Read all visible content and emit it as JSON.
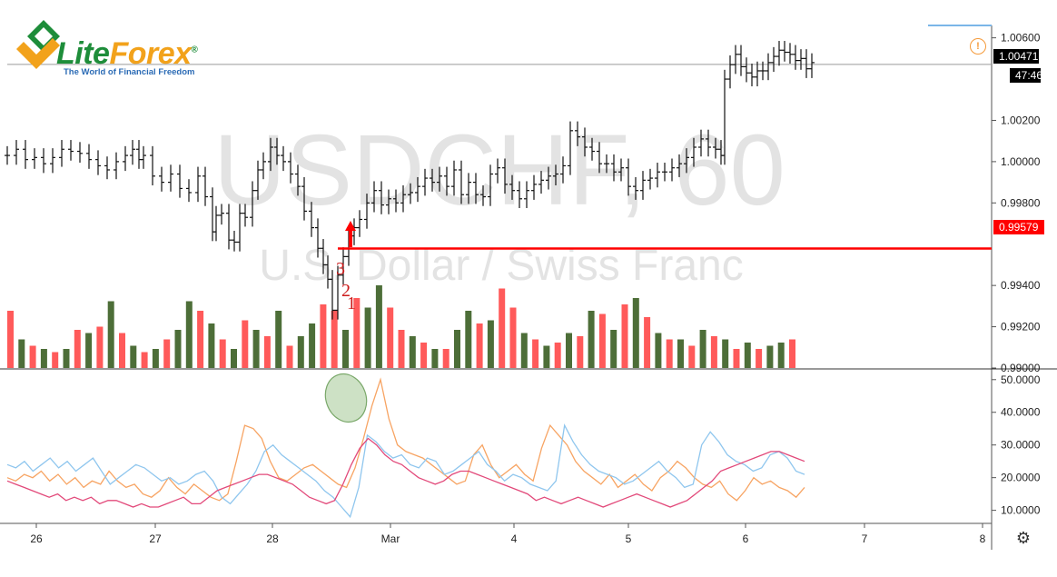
{
  "brand": {
    "name_part1": "Lite",
    "name_part2": "Forex",
    "reg_mark": "®",
    "tagline": "The World of Financial Freedom"
  },
  "watermark": {
    "symbol": "USDCHF, 60",
    "description": "U.S. Dollar / Swiss Franc"
  },
  "price_scale": {
    "ticks": [
      "1.00600",
      "1.00200",
      "1.00000",
      "0.99800",
      "0.99400",
      "0.99200",
      "0.99000"
    ],
    "current_price": "1.00471",
    "countdown": "47:46",
    "marked_price": "0.99579",
    "marked_price_color": "#ff0000"
  },
  "indicator_scale": {
    "ticks": [
      "50.0000",
      "40.0000",
      "30.0000",
      "20.0000",
      "10.0000"
    ]
  },
  "time_axis": {
    "labels": [
      "26",
      "27",
      "28",
      "Mar",
      "4",
      "5",
      "6",
      "7",
      "8"
    ]
  },
  "annotations": {
    "counts": [
      "3",
      "2",
      "1"
    ],
    "arrow_color": "#ff0000"
  },
  "icons": {
    "settings": "gear-icon",
    "alert": "alert-icon"
  },
  "chart_data": [
    {
      "type": "ohlc",
      "title": "USDCHF, 60",
      "subtitle": "U.S. Dollar / Swiss Franc",
      "ylim": [
        0.99,
        1.0066
      ],
      "x_range": [
        "26",
        "8"
      ],
      "close_path": [
        [
          0,
          1.0003
        ],
        [
          10,
          1.0006
        ],
        [
          20,
          1.0001
        ],
        [
          30,
          1.0002
        ],
        [
          40,
          0.9999
        ],
        [
          50,
          1.0002
        ],
        [
          60,
          1.0006
        ],
        [
          70,
          1.0005
        ],
        [
          80,
          1.0004
        ],
        [
          90,
          1.0001
        ],
        [
          100,
          0.9998
        ],
        [
          110,
          0.9996
        ],
        [
          120,
          1.0
        ],
        [
          130,
          1.0003
        ],
        [
          138,
          1.0006
        ],
        [
          145,
          1.0001
        ],
        [
          150,
          1.0003
        ],
        [
          160,
          0.9993
        ],
        [
          170,
          0.999
        ],
        [
          180,
          0.9994
        ],
        [
          190,
          0.9987
        ],
        [
          200,
          0.9985
        ],
        [
          210,
          0.9993
        ],
        [
          218,
          0.9983
        ],
        [
          226,
          0.9966
        ],
        [
          230,
          0.9974
        ],
        [
          236,
          0.9975
        ],
        [
          244,
          0.9962
        ],
        [
          250,
          0.9961
        ],
        [
          256,
          0.9975
        ],
        [
          262,
          0.9973
        ],
        [
          270,
          0.9986
        ],
        [
          276,
          0.9996
        ],
        [
          282,
          1.0
        ],
        [
          290,
          1.0007
        ],
        [
          297,
          1.0003
        ],
        [
          304,
          1.0
        ],
        [
          312,
          0.9994
        ],
        [
          320,
          0.9988
        ],
        [
          327,
          0.9976
        ],
        [
          335,
          0.9968
        ],
        [
          342,
          0.9958
        ],
        [
          348,
          0.995
        ],
        [
          353,
          0.9943
        ],
        [
          358,
          0.9928
        ],
        [
          364,
          0.9945
        ],
        [
          370,
          0.9954
        ],
        [
          376,
          0.9964
        ],
        [
          382,
          0.9968
        ],
        [
          388,
          0.9972
        ],
        [
          396,
          0.998
        ],
        [
          404,
          0.9986
        ],
        [
          412,
          0.9979
        ],
        [
          420,
          0.9982
        ],
        [
          428,
          0.998
        ],
        [
          436,
          0.9984
        ],
        [
          444,
          0.9985
        ],
        [
          452,
          0.9988
        ],
        [
          460,
          0.9992
        ],
        [
          468,
          0.999
        ],
        [
          476,
          0.9993
        ],
        [
          484,
          0.9988
        ],
        [
          492,
          0.9996
        ],
        [
          500,
          0.9984
        ],
        [
          508,
          0.999
        ],
        [
          516,
          0.9984
        ],
        [
          524,
          0.9983
        ],
        [
          532,
          0.9994
        ],
        [
          540,
          0.9997
        ],
        [
          548,
          0.9989
        ],
        [
          556,
          0.9986
        ],
        [
          564,
          0.9982
        ],
        [
          572,
          0.9986
        ],
        [
          580,
          0.9989
        ],
        [
          588,
          0.9991
        ],
        [
          596,
          0.9993
        ],
        [
          604,
          0.9994
        ],
        [
          612,
          0.9998
        ],
        [
          620,
          1.0015
        ],
        [
          628,
          1.0012
        ],
        [
          636,
          1.0007
        ],
        [
          644,
          1.0005
        ],
        [
          652,
          0.9999
        ],
        [
          660,
          0.9999
        ],
        [
          668,
          0.9995
        ],
        [
          676,
          0.9997
        ],
        [
          684,
          0.9988
        ],
        [
          692,
          0.9986
        ],
        [
          700,
          0.9991
        ],
        [
          708,
          0.9992
        ],
        [
          716,
          0.9995
        ],
        [
          724,
          0.9995
        ],
        [
          732,
          0.9997
        ],
        [
          740,
          0.9999
        ],
        [
          748,
          1.0002
        ],
        [
          756,
          1.0007
        ],
        [
          764,
          1.0011
        ],
        [
          772,
          1.0007
        ],
        [
          780,
          1.0006
        ],
        [
          786,
          1.0003
        ],
        [
          790,
          1.004
        ],
        [
          796,
          1.0047
        ],
        [
          802,
          1.0052
        ],
        [
          808,
          1.0046
        ],
        [
          814,
          1.0043
        ],
        [
          820,
          1.0041
        ],
        [
          826,
          1.0044
        ],
        [
          832,
          1.0044
        ],
        [
          838,
          1.0048
        ],
        [
          844,
          1.0051
        ],
        [
          850,
          1.0054
        ],
        [
          856,
          1.0053
        ],
        [
          862,
          1.0052
        ],
        [
          868,
          1.0049
        ],
        [
          874,
          1.005
        ],
        [
          880,
          1.0045
        ],
        [
          886,
          1.0048
        ]
      ],
      "horizontal_line": 0.99579,
      "volume": [
        {
          "i": 0,
          "v": 0.9,
          "dir": "down"
        },
        {
          "i": 1,
          "v": 0.45,
          "dir": "up"
        },
        {
          "i": 2,
          "v": 0.35,
          "dir": "down"
        },
        {
          "i": 3,
          "v": 0.3,
          "dir": "up"
        },
        {
          "i": 4,
          "v": 0.25,
          "dir": "down"
        },
        {
          "i": 5,
          "v": 0.3,
          "dir": "up"
        },
        {
          "i": 6,
          "v": 0.6,
          "dir": "down"
        },
        {
          "i": 7,
          "v": 0.55,
          "dir": "up"
        },
        {
          "i": 8,
          "v": 0.65,
          "dir": "down"
        },
        {
          "i": 9,
          "v": 1.05,
          "dir": "up"
        },
        {
          "i": 10,
          "v": 0.55,
          "dir": "down"
        },
        {
          "i": 11,
          "v": 0.35,
          "dir": "up"
        },
        {
          "i": 12,
          "v": 0.25,
          "dir": "down"
        },
        {
          "i": 13,
          "v": 0.3,
          "dir": "up"
        },
        {
          "i": 14,
          "v": 0.45,
          "dir": "down"
        },
        {
          "i": 15,
          "v": 0.6,
          "dir": "up"
        },
        {
          "i": 16,
          "v": 1.05,
          "dir": "up"
        },
        {
          "i": 17,
          "v": 0.9,
          "dir": "down"
        },
        {
          "i": 18,
          "v": 0.7,
          "dir": "up"
        },
        {
          "i": 19,
          "v": 0.45,
          "dir": "down"
        },
        {
          "i": 20,
          "v": 0.3,
          "dir": "up"
        },
        {
          "i": 21,
          "v": 0.75,
          "dir": "down"
        },
        {
          "i": 22,
          "v": 0.6,
          "dir": "up"
        },
        {
          "i": 23,
          "v": 0.5,
          "dir": "down"
        },
        {
          "i": 24,
          "v": 0.9,
          "dir": "up"
        },
        {
          "i": 25,
          "v": 0.35,
          "dir": "down"
        },
        {
          "i": 26,
          "v": 0.5,
          "dir": "up"
        },
        {
          "i": 27,
          "v": 0.7,
          "dir": "up"
        },
        {
          "i": 28,
          "v": 1.0,
          "dir": "down"
        },
        {
          "i": 29,
          "v": 0.9,
          "dir": "down"
        },
        {
          "i": 30,
          "v": 0.6,
          "dir": "up"
        },
        {
          "i": 31,
          "v": 1.1,
          "dir": "down"
        },
        {
          "i": 32,
          "v": 0.95,
          "dir": "up"
        },
        {
          "i": 33,
          "v": 1.3,
          "dir": "up"
        },
        {
          "i": 34,
          "v": 0.95,
          "dir": "down"
        },
        {
          "i": 35,
          "v": 0.6,
          "dir": "down"
        },
        {
          "i": 36,
          "v": 0.5,
          "dir": "up"
        },
        {
          "i": 37,
          "v": 0.4,
          "dir": "down"
        },
        {
          "i": 38,
          "v": 0.3,
          "dir": "up"
        },
        {
          "i": 39,
          "v": 0.3,
          "dir": "down"
        },
        {
          "i": 40,
          "v": 0.6,
          "dir": "up"
        },
        {
          "i": 41,
          "v": 0.9,
          "dir": "up"
        },
        {
          "i": 42,
          "v": 0.7,
          "dir": "down"
        },
        {
          "i": 43,
          "v": 0.75,
          "dir": "up"
        },
        {
          "i": 44,
          "v": 1.25,
          "dir": "down"
        },
        {
          "i": 45,
          "v": 0.95,
          "dir": "down"
        },
        {
          "i": 46,
          "v": 0.55,
          "dir": "up"
        },
        {
          "i": 47,
          "v": 0.45,
          "dir": "down"
        },
        {
          "i": 48,
          "v": 0.35,
          "dir": "up"
        },
        {
          "i": 49,
          "v": 0.4,
          "dir": "down"
        },
        {
          "i": 50,
          "v": 0.55,
          "dir": "up"
        },
        {
          "i": 51,
          "v": 0.5,
          "dir": "down"
        },
        {
          "i": 52,
          "v": 0.9,
          "dir": "up"
        },
        {
          "i": 53,
          "v": 0.85,
          "dir": "down"
        },
        {
          "i": 54,
          "v": 0.6,
          "dir": "up"
        },
        {
          "i": 55,
          "v": 1.0,
          "dir": "down"
        },
        {
          "i": 56,
          "v": 1.1,
          "dir": "up"
        },
        {
          "i": 57,
          "v": 0.8,
          "dir": "down"
        },
        {
          "i": 58,
          "v": 0.55,
          "dir": "up"
        },
        {
          "i": 59,
          "v": 0.45,
          "dir": "down"
        },
        {
          "i": 60,
          "v": 0.45,
          "dir": "up"
        },
        {
          "i": 61,
          "v": 0.35,
          "dir": "down"
        },
        {
          "i": 62,
          "v": 0.6,
          "dir": "up"
        },
        {
          "i": 63,
          "v": 0.5,
          "dir": "down"
        },
        {
          "i": 64,
          "v": 0.45,
          "dir": "up"
        },
        {
          "i": 65,
          "v": 0.3,
          "dir": "down"
        },
        {
          "i": 66,
          "v": 0.4,
          "dir": "up"
        },
        {
          "i": 67,
          "v": 0.3,
          "dir": "down"
        },
        {
          "i": 68,
          "v": 0.35,
          "dir": "up"
        },
        {
          "i": 69,
          "v": 0.4,
          "dir": "up"
        },
        {
          "i": 70,
          "v": 0.45,
          "dir": "down"
        }
      ],
      "volume_up_color": "#4d6e38",
      "volume_down_color": "#ff5a5a"
    },
    {
      "type": "line",
      "yticks": [
        50,
        40,
        30,
        20,
        10
      ],
      "ylim": [
        6,
        53
      ],
      "series": [
        {
          "color": "#f7a463",
          "values": [
            20,
            19,
            21,
            20,
            22,
            19,
            21,
            18,
            20,
            17,
            19,
            18,
            22,
            19,
            17,
            18,
            15,
            14,
            16,
            20,
            17,
            15,
            18,
            16,
            14,
            13,
            15,
            25,
            36,
            35,
            32,
            25,
            20,
            19,
            21,
            23,
            24,
            22,
            20,
            18,
            17,
            23,
            32,
            42,
            50,
            38,
            30,
            28,
            27,
            26,
            24,
            22,
            20,
            18,
            19,
            27,
            30,
            24,
            20,
            22,
            24,
            21,
            19,
            29,
            36,
            33,
            30,
            25,
            22,
            20,
            18,
            21,
            17,
            19,
            21,
            18,
            16,
            20,
            22,
            25,
            23,
            20,
            18,
            17,
            19,
            15,
            13,
            16,
            20,
            18,
            19,
            17,
            16,
            14,
            17
          ]
        },
        {
          "color": "#8fc6ee",
          "values": [
            24,
            23,
            25,
            22,
            24,
            26,
            23,
            25,
            22,
            24,
            26,
            22,
            18,
            20,
            22,
            24,
            23,
            21,
            19,
            20,
            18,
            19,
            21,
            22,
            19,
            14,
            12,
            15,
            18,
            22,
            28,
            30,
            27,
            25,
            23,
            21,
            19,
            16,
            14,
            11,
            8,
            17,
            33,
            31,
            28,
            26,
            27,
            24,
            23,
            26,
            25,
            21,
            22,
            24,
            26,
            28,
            24,
            22,
            19,
            21,
            20,
            18,
            17,
            16,
            19,
            36,
            31,
            27,
            24,
            22,
            21,
            20,
            18,
            19,
            21,
            23,
            25,
            22,
            20,
            17,
            18,
            30,
            34,
            31,
            27,
            25,
            24,
            22,
            23,
            27,
            28,
            26,
            22,
            21
          ]
        },
        {
          "color": "#e2497a",
          "values": [
            19,
            18,
            17,
            16,
            15,
            14,
            15,
            13,
            14,
            13,
            14,
            12,
            13,
            13,
            12,
            11,
            12,
            11,
            11,
            12,
            13,
            14,
            12,
            12,
            14,
            16,
            17,
            18,
            19,
            20,
            21,
            21,
            20,
            19,
            18,
            16,
            14,
            13,
            12,
            13,
            18,
            24,
            29,
            32,
            30,
            27,
            25,
            24,
            22,
            20,
            19,
            18,
            19,
            21,
            22,
            22,
            21,
            20,
            19,
            18,
            17,
            16,
            15,
            13,
            14,
            13,
            12,
            13,
            14,
            13,
            12,
            11,
            12,
            13,
            14,
            15,
            14,
            13,
            12,
            11,
            12,
            13,
            15,
            17,
            19,
            22,
            23,
            24,
            25,
            26,
            27,
            28,
            28,
            27,
            26,
            25
          ]
        }
      ]
    }
  ]
}
